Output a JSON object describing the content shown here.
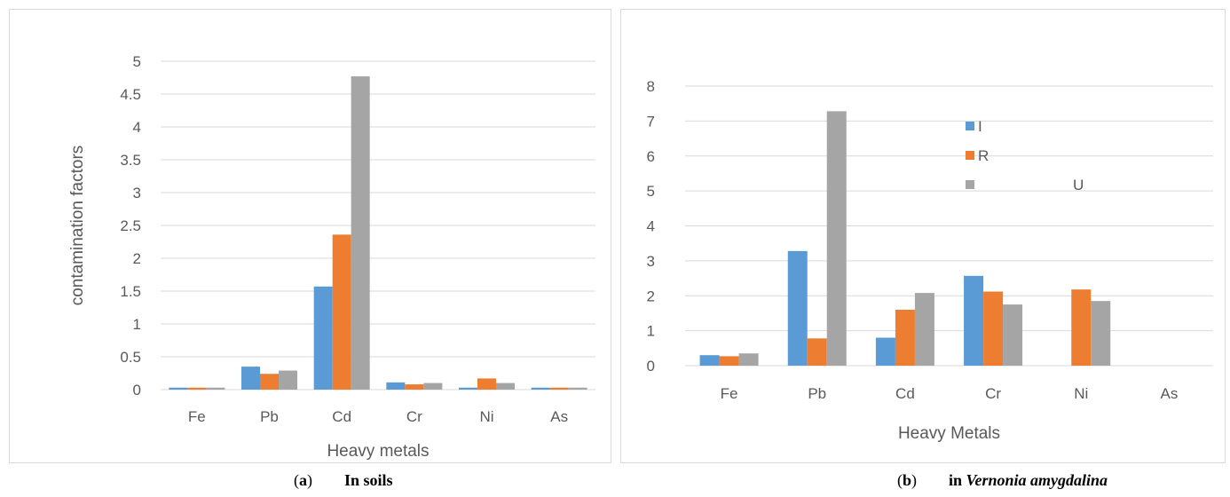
{
  "chart_data": [
    {
      "type": "bar",
      "categories": [
        "Fe",
        "Pb",
        "Cd",
        "Cr",
        "Ni",
        "As"
      ],
      "series": [
        {
          "values": [
            0.03,
            0.35,
            1.57,
            0.11,
            0.03,
            0.03
          ]
        },
        {
          "values": [
            0.03,
            0.24,
            2.36,
            0.08,
            0.17,
            0.03
          ]
        },
        {
          "values": [
            0.03,
            0.29,
            4.77,
            0.1,
            0.1,
            0.03
          ]
        }
      ],
      "ylabel": "contamination factors",
      "xlabel": "Heavy metals",
      "ylim": [
        0,
        5
      ],
      "yticks": [
        "0",
        "0.5",
        "1",
        "1.5",
        "2",
        "2.5",
        "3",
        "3.5",
        "4",
        "4.5",
        "5"
      ],
      "grid": true,
      "colors": [
        "#5b9bd5",
        "#ed7d31",
        "#a5a5a5"
      ]
    },
    {
      "type": "bar",
      "categories": [
        "Fe",
        "Pb",
        "Cd",
        "Cr",
        "Ni",
        "As"
      ],
      "series": [
        {
          "name": "I",
          "values": [
            0.3,
            3.28,
            0.8,
            2.57,
            0,
            0
          ]
        },
        {
          "name": "R",
          "values": [
            0.27,
            0.78,
            1.6,
            2.12,
            2.18,
            0
          ]
        },
        {
          "name": "U",
          "values": [
            0.35,
            7.28,
            2.08,
            1.75,
            1.85,
            0
          ]
        }
      ],
      "xlabel": "Heavy Metals",
      "ylim": [
        0,
        8
      ],
      "yticks": [
        "0",
        "1",
        "2",
        "3",
        "4",
        "5",
        "6",
        "7",
        "8"
      ],
      "grid": true,
      "legend": "inside top-center",
      "colors": [
        "#5b9bd5",
        "#ed7d31",
        "#a5a5a5"
      ]
    }
  ],
  "captions": {
    "a": {
      "label": "a",
      "text": "In soils"
    },
    "b": {
      "label": "b",
      "text_prefix": "in ",
      "text_italic": "Vernonia amygdalina"
    }
  }
}
